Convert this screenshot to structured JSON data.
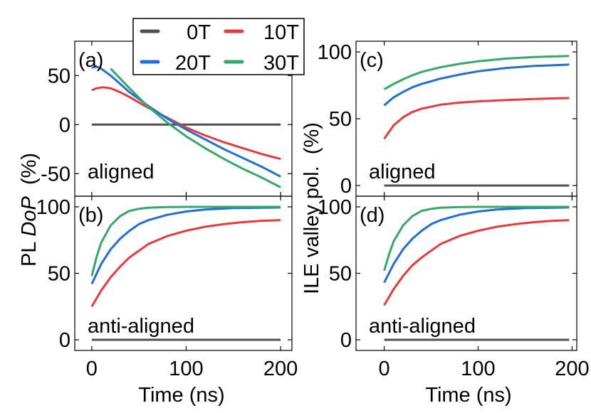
{
  "colors": {
    "0T": "#505050",
    "10T": "#e8393b",
    "20T": "#1f6fd6",
    "30T": "#36a866"
  },
  "legend": {
    "entries": [
      {
        "label": "0T",
        "color": "#505050"
      },
      {
        "label": "10T",
        "color": "#e8393b"
      },
      {
        "label": "20T",
        "color": "#1f6fd6"
      },
      {
        "label": "30T",
        "color": "#36a866"
      }
    ]
  },
  "left": {
    "ylabel_prefix": "PL ",
    "ylabel_italic": "DoP",
    "ylabel_suffix": "  (%)",
    "xlabel": "Time (ns)"
  },
  "right": {
    "ylabel": "ILE valley pol.  (%)",
    "xlabel": "Time (ns)"
  },
  "chart_data": [
    {
      "type": "line",
      "id": "a",
      "panel_label": "(a)",
      "annotation": "aligned",
      "xlim": [
        -18,
        212
      ],
      "ylim": [
        -73,
        85
      ],
      "xticks": [
        0,
        100,
        200
      ],
      "yticks": [
        50,
        0,
        -50
      ],
      "ytick_labels": [
        "50",
        "0",
        "-50"
      ],
      "series": [
        {
          "name": "0T",
          "x": [
            0,
            200
          ],
          "values": [
            0,
            0
          ]
        },
        {
          "name": "10T",
          "x": [
            0,
            5,
            12,
            20,
            30,
            40,
            60,
            80,
            100,
            120,
            140,
            160,
            180,
            200
          ],
          "values": [
            35,
            37,
            38,
            37,
            33,
            28,
            17,
            7,
            -3,
            -11,
            -18,
            -24,
            -30,
            -35
          ]
        },
        {
          "name": "20T",
          "x": [
            0,
            5,
            10,
            20,
            40,
            60,
            80,
            100,
            120,
            140,
            160,
            180,
            200
          ],
          "values": [
            58,
            59,
            57,
            50,
            33,
            19,
            6,
            -5,
            -15,
            -25,
            -34,
            -43,
            -53
          ]
        },
        {
          "name": "30T",
          "x": [
            20,
            30,
            40,
            60,
            80,
            100,
            120,
            140,
            160,
            180,
            200
          ],
          "values": [
            57,
            47,
            37,
            18,
            2,
            -12,
            -24,
            -35,
            -45,
            -54,
            -64
          ]
        }
      ]
    },
    {
      "type": "line",
      "id": "b",
      "panel_label": "(b)",
      "annotation": "anti-aligned",
      "xlim": [
        -18,
        212
      ],
      "ylim": [
        -8,
        108
      ],
      "xticks": [
        0,
        100,
        200
      ],
      "xtick_labels": [
        "0",
        "100",
        "200"
      ],
      "yticks": [
        100,
        50,
        0
      ],
      "ytick_labels": [
        "100",
        "50",
        "0"
      ],
      "series": [
        {
          "name": "0T",
          "x": [
            0,
            200
          ],
          "values": [
            0,
            0
          ]
        },
        {
          "name": "10T",
          "x": [
            0,
            10,
            20,
            30,
            40,
            50,
            60,
            80,
            100,
            120,
            140,
            160,
            180,
            200
          ],
          "values": [
            25,
            37,
            47,
            55,
            62,
            67,
            72,
            78,
            82,
            85,
            87,
            88.5,
            89.5,
            90
          ]
        },
        {
          "name": "20T",
          "x": [
            0,
            10,
            20,
            30,
            40,
            50,
            60,
            80,
            100,
            120,
            150,
            200
          ],
          "values": [
            42,
            57,
            68,
            76,
            82,
            87,
            90,
            94,
            96.5,
            98,
            99,
            99.5
          ]
        },
        {
          "name": "30T",
          "x": [
            0,
            5,
            10,
            20,
            30,
            40,
            50,
            60,
            80,
            100,
            150,
            200
          ],
          "values": [
            48,
            62,
            73,
            86,
            93,
            97,
            98.5,
            99.3,
            99.8,
            100,
            100,
            100
          ]
        }
      ]
    },
    {
      "type": "line",
      "id": "c",
      "panel_label": "(c)",
      "annotation": "aligned",
      "xlim": [
        -30,
        205
      ],
      "ylim": [
        -8,
        108
      ],
      "xticks": [
        0,
        100,
        200
      ],
      "yticks": [
        100,
        50,
        0
      ],
      "ytick_labels": [
        "100",
        "50",
        "0"
      ],
      "series": [
        {
          "name": "0T",
          "x": [
            0,
            197
          ],
          "values": [
            0,
            0
          ]
        },
        {
          "name": "10T",
          "x": [
            0,
            10,
            20,
            30,
            40,
            60,
            80,
            100,
            130,
            160,
            197
          ],
          "values": [
            35,
            45,
            51,
            55,
            57.5,
            60.5,
            62,
            63,
            64,
            64.8,
            65.5
          ]
        },
        {
          "name": "20T",
          "x": [
            0,
            10,
            20,
            30,
            40,
            60,
            80,
            100,
            130,
            160,
            197
          ],
          "values": [
            60,
            66,
            70,
            73.5,
            76,
            80,
            83,
            85.5,
            88,
            89.5,
            90.5
          ]
        },
        {
          "name": "30T",
          "x": [
            0,
            10,
            20,
            30,
            40,
            60,
            80,
            100,
            130,
            160,
            197
          ],
          "values": [
            72,
            76,
            79.5,
            82.5,
            85,
            88.5,
            91,
            93,
            95,
            96.2,
            97
          ]
        }
      ]
    },
    {
      "type": "line",
      "id": "d",
      "panel_label": "(d)",
      "annotation": "anti-aligned",
      "xlim": [
        -30,
        205
      ],
      "ylim": [
        -8,
        108
      ],
      "xticks": [
        0,
        100,
        200
      ],
      "xtick_labels": [
        "0",
        "100",
        "200"
      ],
      "yticks": [
        100,
        50,
        0
      ],
      "ytick_labels": [
        "100",
        "50",
        "0"
      ],
      "series": [
        {
          "name": "0T",
          "x": [
            0,
            197
          ],
          "values": [
            0,
            0
          ]
        },
        {
          "name": "10T",
          "x": [
            0,
            10,
            20,
            30,
            40,
            50,
            60,
            80,
            100,
            120,
            140,
            160,
            180,
            197
          ],
          "values": [
            26,
            38,
            48,
            56,
            62,
            67,
            72,
            78,
            82,
            85,
            87,
            88.5,
            89.5,
            90
          ]
        },
        {
          "name": "20T",
          "x": [
            0,
            10,
            20,
            30,
            40,
            50,
            60,
            80,
            100,
            120,
            150,
            197
          ],
          "values": [
            43,
            57,
            68,
            76,
            82,
            87,
            90,
            94,
            96.5,
            98,
            99,
            99.5
          ]
        },
        {
          "name": "30T",
          "x": [
            0,
            5,
            10,
            20,
            30,
            40,
            50,
            60,
            80,
            100,
            150,
            197
          ],
          "values": [
            52,
            64,
            74,
            86,
            93,
            97,
            98.5,
            99.3,
            99.8,
            100,
            100,
            100
          ]
        }
      ]
    }
  ]
}
